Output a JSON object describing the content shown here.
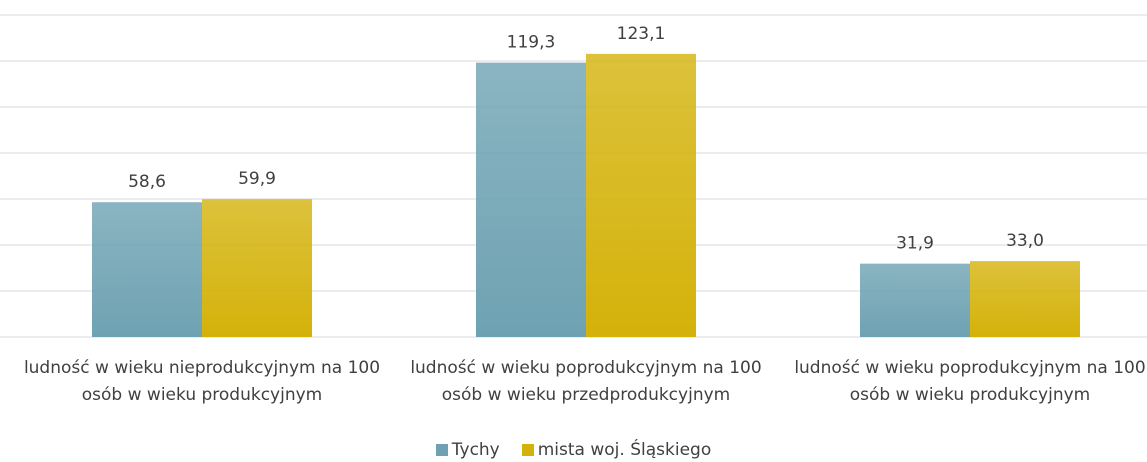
{
  "chart_data": {
    "type": "bar",
    "categories": [
      "ludność w wieku nieprodukcyjnym na 100 osób w wieku produkcyjnym",
      "ludność w wieku poprodukcyjnym na 100 osób w wieku przedprodukcyjnym",
      "ludność w wieku poprodukcyjnym na 100 osób w wieku produkcyjnym"
    ],
    "series": [
      {
        "name": "Tychy",
        "color": "#6ea2b2",
        "values": [
          58.6,
          119.3,
          31.9
        ],
        "value_labels": [
          "58,6",
          "119,3",
          "31,9"
        ]
      },
      {
        "name": "mista woj. Śląskiego",
        "color": "#d4b20a",
        "values": [
          59.9,
          123.1,
          33.0
        ],
        "value_labels": [
          "59,9",
          "123,1",
          "33,0"
        ]
      }
    ],
    "ylim": [
      0,
      140
    ],
    "yticks": [
      0,
      20,
      40,
      60,
      80,
      100,
      120,
      140
    ],
    "grid": true,
    "legend": "bottom"
  }
}
